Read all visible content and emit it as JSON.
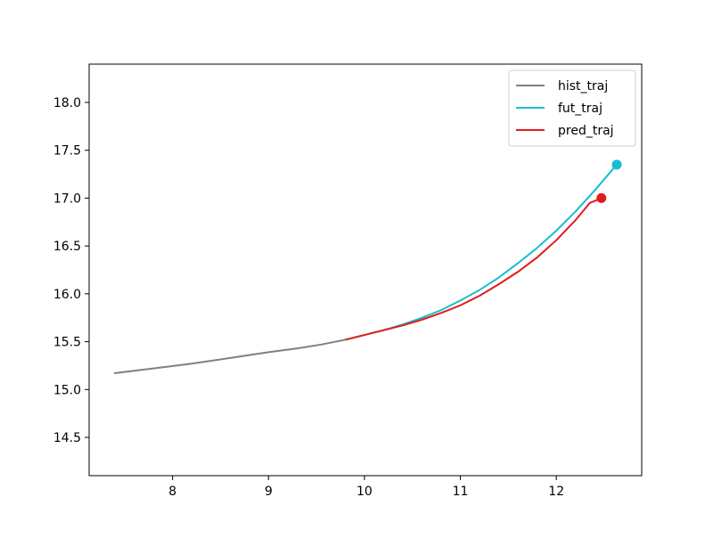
{
  "chart_data": {
    "type": "line",
    "title": "",
    "xlabel": "",
    "ylabel": "",
    "xlim": [
      7.13,
      12.89
    ],
    "ylim": [
      14.1,
      18.4
    ],
    "x_ticks": [
      8,
      9,
      10,
      11,
      12
    ],
    "y_ticks": [
      14.5,
      15.0,
      15.5,
      16.0,
      16.5,
      17.0,
      17.5,
      18.0
    ],
    "x_tick_labels": [
      "8",
      "9",
      "10",
      "11",
      "12"
    ],
    "y_tick_labels": [
      "14.5",
      "15.0",
      "15.5",
      "16.0",
      "16.5",
      "17.0",
      "17.5",
      "18.0"
    ],
    "grid": false,
    "legend_position": "top-right",
    "series": [
      {
        "name": "hist_traj",
        "color": "#808080",
        "x": [
          7.39,
          7.8,
          8.2,
          8.6,
          9.0,
          9.3,
          9.55,
          9.8
        ],
        "y": [
          15.17,
          15.22,
          15.27,
          15.33,
          15.39,
          15.43,
          15.47,
          15.52
        ],
        "end_marker": false
      },
      {
        "name": "fut_traj",
        "color": "#17becf",
        "x": [
          9.8,
          10.0,
          10.2,
          10.4,
          10.6,
          10.8,
          11.0,
          11.2,
          11.4,
          11.6,
          11.8,
          12.0,
          12.2,
          12.4,
          12.63
        ],
        "y": [
          15.52,
          15.57,
          15.62,
          15.68,
          15.75,
          15.83,
          15.93,
          16.04,
          16.17,
          16.32,
          16.48,
          16.66,
          16.86,
          17.08,
          17.35
        ],
        "end_marker": true
      },
      {
        "name": "pred_traj",
        "color": "#e41a1c",
        "x": [
          9.8,
          10.0,
          10.2,
          10.4,
          10.6,
          10.8,
          11.0,
          11.2,
          11.4,
          11.6,
          11.8,
          12.0,
          12.2,
          12.35,
          12.47
        ],
        "y": [
          15.52,
          15.57,
          15.62,
          15.67,
          15.73,
          15.8,
          15.88,
          15.98,
          16.1,
          16.23,
          16.38,
          16.56,
          16.77,
          16.95,
          17.0
        ],
        "end_marker": true
      }
    ]
  }
}
